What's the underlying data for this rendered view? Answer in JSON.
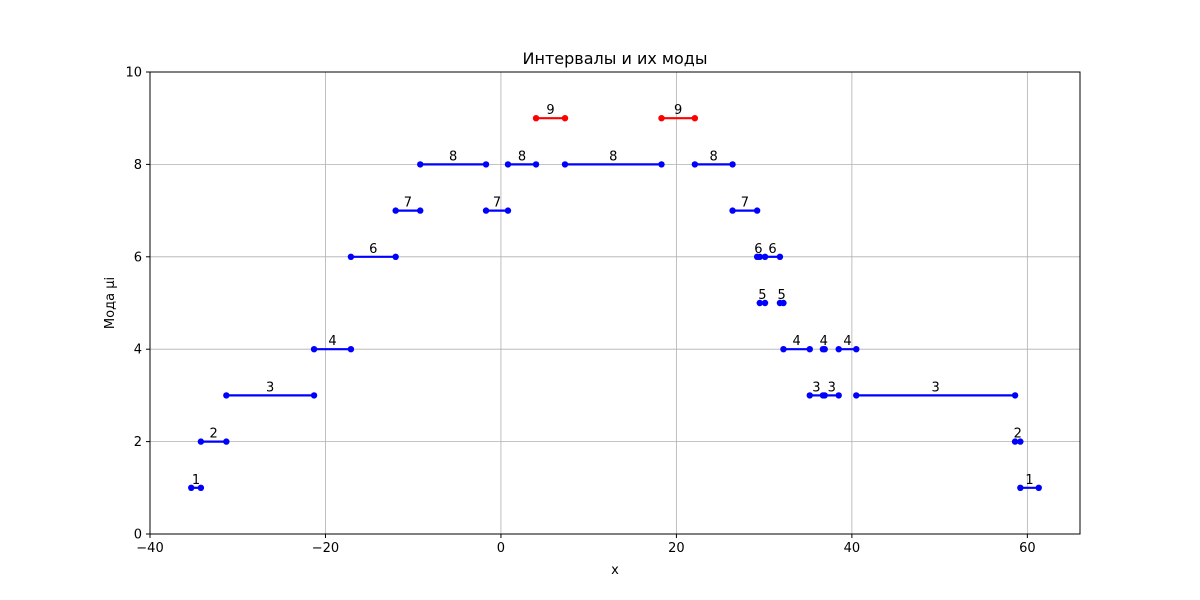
{
  "chart_data": {
    "type": "line",
    "title": "Интервалы и их моды",
    "xlabel": "x",
    "ylabel": "Мода μi",
    "xlim": [
      -40,
      66
    ],
    "ylim": [
      0,
      10
    ],
    "xticks": [
      -40,
      -20,
      0,
      20,
      40,
      60
    ],
    "yticks": [
      0,
      2,
      4,
      6,
      8,
      10
    ],
    "grid": true,
    "colors": {
      "normal": "#0000ff",
      "max": "#ff0000",
      "grid": "#b0b0b0"
    },
    "intervals": [
      {
        "x0": -35.3,
        "x1": -34.2,
        "mode": 1,
        "label": "1"
      },
      {
        "x0": -34.2,
        "x1": -31.3,
        "mode": 2,
        "label": "2"
      },
      {
        "x0": -31.3,
        "x1": -21.3,
        "mode": 3,
        "label": "3"
      },
      {
        "x0": -21.3,
        "x1": -17.1,
        "mode": 4,
        "label": "4"
      },
      {
        "x0": -17.1,
        "x1": -12.0,
        "mode": 6,
        "label": "6"
      },
      {
        "x0": -12.0,
        "x1": -9.2,
        "mode": 7,
        "label": "7"
      },
      {
        "x0": -9.2,
        "x1": -1.7,
        "mode": 8,
        "label": "8"
      },
      {
        "x0": -1.7,
        "x1": 0.8,
        "mode": 7,
        "label": "7"
      },
      {
        "x0": 0.8,
        "x1": 4.0,
        "mode": 8,
        "label": "8"
      },
      {
        "x0": 4.0,
        "x1": 7.3,
        "mode": 9,
        "label": "9"
      },
      {
        "x0": 7.3,
        "x1": 18.3,
        "mode": 8,
        "label": "8"
      },
      {
        "x0": 18.3,
        "x1": 22.1,
        "mode": 9,
        "label": "9"
      },
      {
        "x0": 22.1,
        "x1": 26.4,
        "mode": 8,
        "label": "8"
      },
      {
        "x0": 26.4,
        "x1": 29.2,
        "mode": 7,
        "label": "7"
      },
      {
        "x0": 29.2,
        "x1": 29.5,
        "mode": 6,
        "label": "6"
      },
      {
        "x0": 29.5,
        "x1": 30.1,
        "mode": 5,
        "label": "5"
      },
      {
        "x0": 30.1,
        "x1": 31.8,
        "mode": 6,
        "label": "6"
      },
      {
        "x0": 31.8,
        "x1": 32.2,
        "mode": 5,
        "label": "5"
      },
      {
        "x0": 32.2,
        "x1": 35.2,
        "mode": 4,
        "label": "4"
      },
      {
        "x0": 35.2,
        "x1": 36.7,
        "mode": 3,
        "label": "3"
      },
      {
        "x0": 36.7,
        "x1": 36.9,
        "mode": 4,
        "label": "4"
      },
      {
        "x0": 36.9,
        "x1": 38.5,
        "mode": 3,
        "label": "3"
      },
      {
        "x0": 38.5,
        "x1": 40.5,
        "mode": 4,
        "label": "4"
      },
      {
        "x0": 40.5,
        "x1": 58.6,
        "mode": 3,
        "label": "3"
      },
      {
        "x0": 58.6,
        "x1": 59.2,
        "mode": 2,
        "label": "2"
      },
      {
        "x0": 59.2,
        "x1": 61.3,
        "mode": 1,
        "label": "1"
      }
    ]
  }
}
